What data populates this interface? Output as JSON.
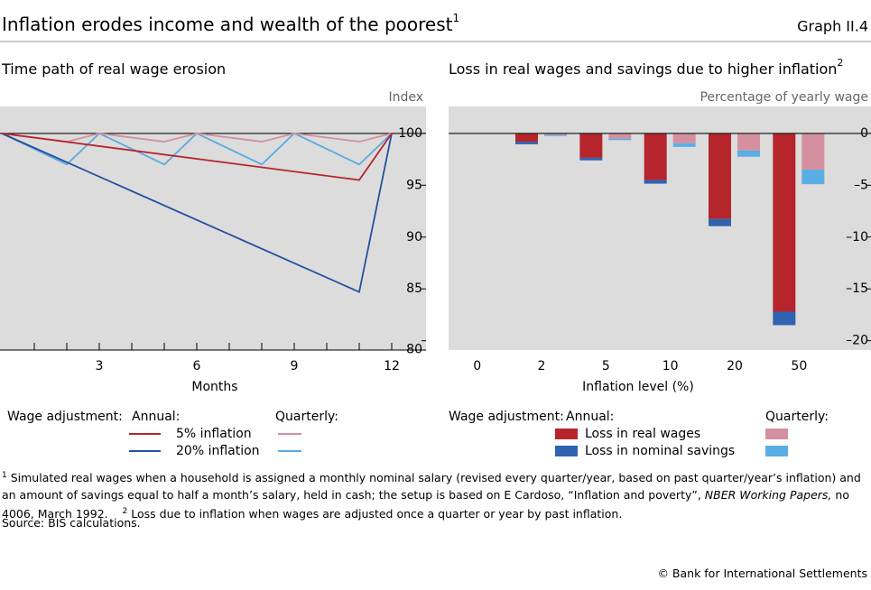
{
  "header": {
    "title": "Inflation erodes income and wealth of the poorest",
    "title_note": "1",
    "graph_id": "Graph II.4"
  },
  "chart_data": [
    {
      "type": "line",
      "title": "Time path of real wage erosion",
      "y_unit_label": "Index",
      "x_label": "Months",
      "xlim": [
        0,
        12
      ],
      "xticks": [
        3,
        6,
        9,
        12
      ],
      "xminorticks": [
        1,
        2,
        4,
        5,
        7,
        8,
        10,
        11
      ],
      "ylim": [
        79.1,
        102.6
      ],
      "yticks": [
        80,
        85,
        90,
        95,
        100
      ],
      "refline": 100,
      "legend_title": "Wage adjustment:",
      "legend_groups": [
        "Annual:",
        "Quarterly:"
      ],
      "series": [
        {
          "name": "5% inflation",
          "group": 0,
          "color": "#b5252b",
          "x": [
            0,
            11,
            12
          ],
          "values": [
            100,
            95.5,
            100
          ]
        },
        {
          "name": "20% inflation",
          "group": 0,
          "color": "#23509e",
          "x": [
            0,
            11,
            12
          ],
          "values": [
            100,
            84.7,
            100
          ]
        },
        {
          "group": 1,
          "color": "#d4909e",
          "x": [
            0,
            2,
            3,
            5,
            6,
            8,
            9,
            11,
            12
          ],
          "values": [
            100,
            99.2,
            100,
            99.2,
            100,
            99.2,
            100,
            99.2,
            100
          ]
        },
        {
          "group": 1,
          "color": "#5aa9e0",
          "x": [
            0,
            2,
            3,
            5,
            6,
            8,
            9,
            11,
            12
          ],
          "values": [
            100,
            97,
            100,
            97,
            100,
            97,
            100,
            97,
            100
          ]
        }
      ]
    },
    {
      "type": "bar",
      "title": "Loss in real wages and savings due to higher inflation",
      "title_note": "2",
      "y_unit_label": "Percentage of yearly wage",
      "x_label": "Inflation level (%)",
      "categories": [
        "0",
        "2",
        "5",
        "10",
        "20",
        "50"
      ],
      "ylim": [
        -20.9,
        2.6
      ],
      "yticks": [
        0,
        {
          "value": -5,
          "label": "–5"
        },
        {
          "value": -10,
          "label": "–10"
        },
        {
          "value": -15,
          "label": "–15"
        },
        {
          "value": -20,
          "label": "–20"
        }
      ],
      "refline": 0,
      "stacked": true,
      "legend_title": "Wage adjustment:",
      "legend_groups": [
        "Annual:",
        "Quarterly:"
      ],
      "series": [
        {
          "name": "Loss in real wages",
          "group": 0,
          "color": "#b5252b",
          "values": [
            0,
            -0.8,
            -2.35,
            -4.5,
            -8.25,
            -17.2
          ]
        },
        {
          "name": "Loss in nominal savings",
          "group": 0,
          "color": "#2f63b0",
          "values": [
            0,
            -0.25,
            -0.25,
            -0.35,
            -0.7,
            -1.3
          ]
        },
        {
          "group": 1,
          "color": "#d4909e",
          "values": [
            0,
            -0.15,
            -0.5,
            -0.95,
            -1.65,
            -3.5
          ]
        },
        {
          "group": 1,
          "color": "#5aaee6",
          "values": [
            0,
            -0.1,
            -0.15,
            -0.35,
            -0.6,
            -1.4
          ]
        }
      ]
    }
  ],
  "footnotes": [
    {
      "marker": "1",
      "parts": [
        "Simulated real wages when a household is assigned a monthly nominal salary (revised every quarter/year, based on past quarter/year’s inflation) and an amount of savings equal to half a month’s salary, held in cash; the setup is based on E Cardoso, “Inflation and poverty”, ",
        "NBER Working Papers,",
        " no 4006, March 1992."
      ]
    },
    {
      "marker": "2",
      "parts": [
        "Loss due to inflation when wages are adjusted once a quarter or year by past inflation."
      ]
    }
  ],
  "source": "Source: BIS calculations.",
  "copyright": "© Bank for International Settlements"
}
